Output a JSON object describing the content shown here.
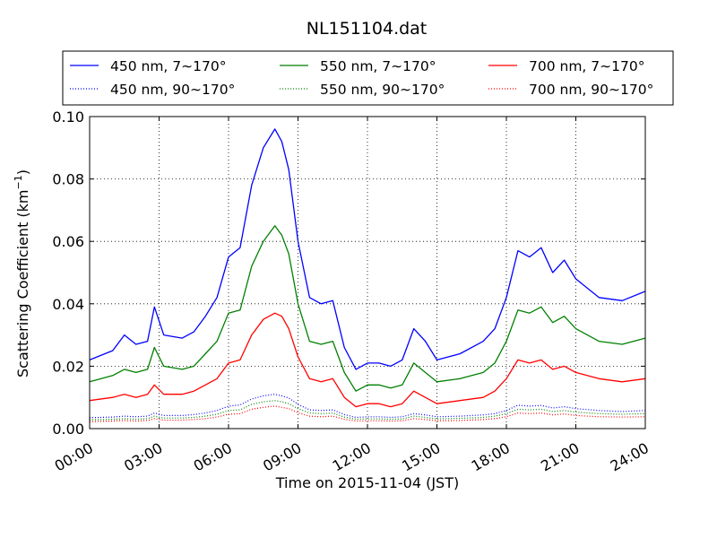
{
  "chart_data": {
    "type": "line",
    "title": "NL151104.dat",
    "xlabel": "Time on 2015-11-04 (JST)",
    "ylabel": "Scattering Coefficient (km",
    "ylabel_exp": "−1",
    "ylabel_end": ")",
    "xlim": [
      "00:00",
      "24:00"
    ],
    "ylim": [
      0.0,
      0.1
    ],
    "grid": true,
    "legend_position": "top",
    "x_tick_labels": [
      "00:00",
      "03:00",
      "06:00",
      "09:00",
      "12:00",
      "15:00",
      "18:00",
      "21:00",
      "24:00"
    ],
    "y_tick_labels": [
      "0.00",
      "0.02",
      "0.04",
      "0.06",
      "0.08",
      "0.10"
    ],
    "y_ticks": [
      0.0,
      0.02,
      0.04,
      0.06,
      0.08,
      0.1
    ],
    "x_hours": [
      0,
      1,
      1.5,
      2,
      2.5,
      2.8,
      3.2,
      4,
      4.5,
      5,
      5.5,
      6,
      6.5,
      7,
      7.5,
      8,
      8.3,
      8.6,
      9,
      9.5,
      10,
      10.5,
      11,
      11.5,
      12,
      12.5,
      13,
      13.5,
      14,
      14.5,
      15,
      16,
      17,
      17.5,
      18,
      18.5,
      19,
      19.5,
      20,
      20.5,
      21,
      22,
      23,
      24
    ],
    "series": [
      {
        "name": "450 nm, 7∼170°",
        "color": "#0000ff",
        "style": "solid",
        "values": [
          0.022,
          0.025,
          0.03,
          0.027,
          0.028,
          0.039,
          0.03,
          0.029,
          0.031,
          0.036,
          0.042,
          0.055,
          0.058,
          0.078,
          0.09,
          0.096,
          0.092,
          0.083,
          0.06,
          0.042,
          0.04,
          0.041,
          0.026,
          0.019,
          0.021,
          0.021,
          0.02,
          0.022,
          0.032,
          0.028,
          0.022,
          0.024,
          0.028,
          0.032,
          0.042,
          0.057,
          0.055,
          0.058,
          0.05,
          0.054,
          0.048,
          0.042,
          0.041,
          0.044
        ]
      },
      {
        "name": "550 nm, 7∼170°",
        "color": "#008000",
        "style": "solid",
        "values": [
          0.015,
          0.017,
          0.019,
          0.018,
          0.019,
          0.026,
          0.02,
          0.019,
          0.02,
          0.024,
          0.028,
          0.037,
          0.038,
          0.052,
          0.06,
          0.065,
          0.062,
          0.056,
          0.04,
          0.028,
          0.027,
          0.028,
          0.018,
          0.012,
          0.014,
          0.014,
          0.013,
          0.014,
          0.021,
          0.018,
          0.015,
          0.016,
          0.018,
          0.021,
          0.028,
          0.038,
          0.037,
          0.039,
          0.034,
          0.036,
          0.032,
          0.028,
          0.027,
          0.029
        ]
      },
      {
        "name": "700 nm, 7∼170°",
        "color": "#ff0000",
        "style": "solid",
        "values": [
          0.009,
          0.01,
          0.011,
          0.01,
          0.011,
          0.014,
          0.011,
          0.011,
          0.012,
          0.014,
          0.016,
          0.021,
          0.022,
          0.03,
          0.035,
          0.037,
          0.036,
          0.032,
          0.023,
          0.016,
          0.015,
          0.016,
          0.01,
          0.007,
          0.008,
          0.008,
          0.007,
          0.008,
          0.012,
          0.01,
          0.008,
          0.009,
          0.01,
          0.012,
          0.016,
          0.022,
          0.021,
          0.022,
          0.019,
          0.02,
          0.018,
          0.016,
          0.015,
          0.016
        ]
      },
      {
        "name": "450 nm, 90∼170°",
        "color": "#0000ff",
        "style": "dotted",
        "values": [
          0.0035,
          0.0037,
          0.004,
          0.0038,
          0.004,
          0.005,
          0.0042,
          0.0042,
          0.0045,
          0.005,
          0.0058,
          0.0072,
          0.0076,
          0.0095,
          0.0105,
          0.011,
          0.0105,
          0.0098,
          0.0078,
          0.006,
          0.0058,
          0.006,
          0.0045,
          0.0036,
          0.0038,
          0.0038,
          0.0036,
          0.0038,
          0.0048,
          0.0044,
          0.0038,
          0.004,
          0.0044,
          0.0048,
          0.0058,
          0.0075,
          0.0072,
          0.0074,
          0.0066,
          0.007,
          0.0064,
          0.0058,
          0.0055,
          0.0058
        ]
      },
      {
        "name": "550 nm, 90∼170°",
        "color": "#008000",
        "style": "dotted",
        "values": [
          0.0028,
          0.003,
          0.0032,
          0.003,
          0.0032,
          0.004,
          0.0034,
          0.0034,
          0.0036,
          0.004,
          0.0046,
          0.0058,
          0.006,
          0.0078,
          0.0086,
          0.009,
          0.0086,
          0.008,
          0.0064,
          0.005,
          0.0048,
          0.005,
          0.0037,
          0.003,
          0.0031,
          0.0031,
          0.003,
          0.0031,
          0.004,
          0.0036,
          0.0031,
          0.0033,
          0.0036,
          0.004,
          0.0048,
          0.0062,
          0.006,
          0.0062,
          0.0055,
          0.0058,
          0.0053,
          0.0048,
          0.0046,
          0.0048
        ]
      },
      {
        "name": "700 nm, 90∼170°",
        "color": "#ff0000",
        "style": "dotted",
        "values": [
          0.0022,
          0.0024,
          0.0026,
          0.0024,
          0.0026,
          0.0032,
          0.0027,
          0.0027,
          0.0029,
          0.0032,
          0.0037,
          0.0046,
          0.0048,
          0.0062,
          0.0068,
          0.0072,
          0.0068,
          0.0064,
          0.0051,
          0.004,
          0.0038,
          0.004,
          0.003,
          0.0024,
          0.0025,
          0.0025,
          0.0024,
          0.0025,
          0.0032,
          0.0029,
          0.0025,
          0.0026,
          0.0029,
          0.0032,
          0.0038,
          0.005,
          0.0048,
          0.005,
          0.0044,
          0.0047,
          0.0042,
          0.0038,
          0.0037,
          0.0038
        ]
      }
    ],
    "legend_order": [
      0,
      1,
      2,
      3,
      4,
      5
    ]
  }
}
